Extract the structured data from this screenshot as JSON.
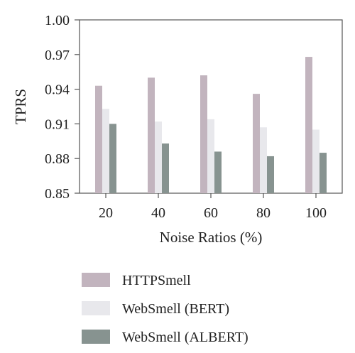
{
  "chart_data": {
    "type": "bar",
    "title": "",
    "xlabel": "Noise Ratios (%)",
    "ylabel": "TPRS",
    "categories": [
      "20",
      "40",
      "60",
      "80",
      "100"
    ],
    "ylim": [
      0.85,
      1.0
    ],
    "yticks": [
      "0.85",
      "0.88",
      "0.91",
      "0.94",
      "0.97",
      "1.00"
    ],
    "grid": false,
    "legend_position": "bottom",
    "series": [
      {
        "name": "HTTPSmell",
        "color": "#c2b4be",
        "values": [
          0.943,
          0.95,
          0.952,
          0.936,
          0.968
        ]
      },
      {
        "name": "WebSmell (BERT)",
        "color": "#e8e8ec",
        "values": [
          0.923,
          0.912,
          0.914,
          0.907,
          0.905
        ]
      },
      {
        "name": "WebSmell (ALBERT)",
        "color": "#879390",
        "values": [
          0.91,
          0.893,
          0.886,
          0.882,
          0.885
        ]
      }
    ]
  }
}
